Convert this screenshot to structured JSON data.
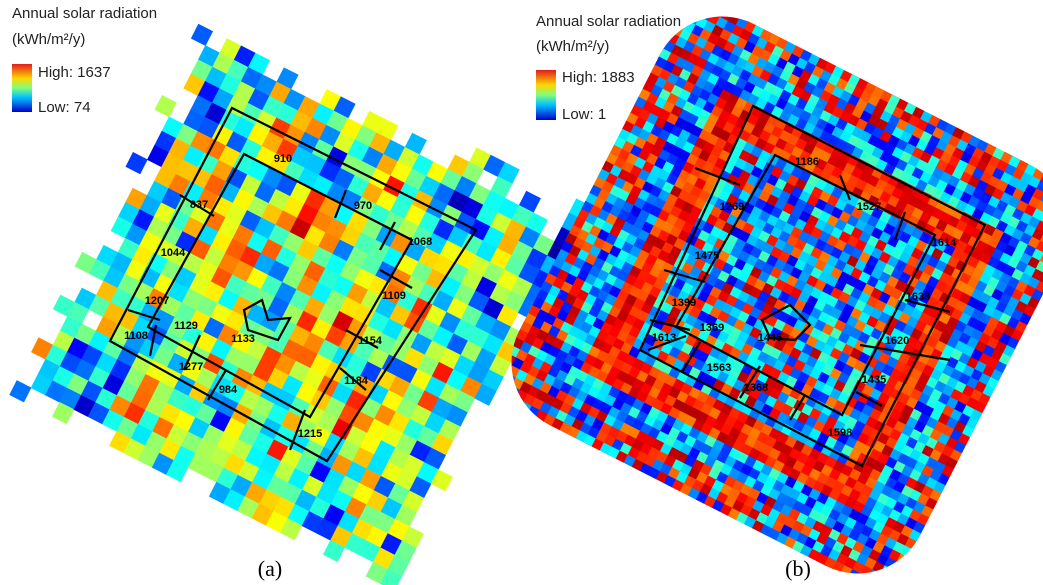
{
  "panels": [
    {
      "legend": {
        "title": "Annual solar radiation",
        "units": "(kWh/m²/y)",
        "high": "High: 1637",
        "low": "Low: 74"
      },
      "buildings": [
        910,
        837,
        970,
        1068,
        1044,
        1109,
        1207,
        1129,
        1108,
        1133,
        1154,
        1277,
        1184,
        984,
        1215
      ],
      "caption": "(a)"
    },
    {
      "legend": {
        "title": "Annual solar radiation",
        "units": "(kWh/m²/y)",
        "high": "High: 1883",
        "low": "Low: 1"
      },
      "buildings": [
        1186,
        1269,
        1527,
        1614,
        1475,
        1638,
        1399,
        1369,
        1613,
        1445,
        1620,
        1563,
        1435,
        1368,
        1598
      ],
      "caption": "(b)"
    }
  ]
}
